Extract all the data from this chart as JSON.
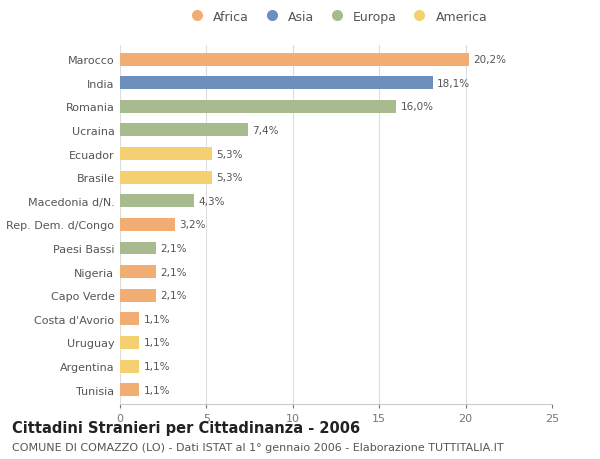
{
  "categories": [
    "Marocco",
    "India",
    "Romania",
    "Ucraina",
    "Ecuador",
    "Brasile",
    "Macedonia d/N.",
    "Rep. Dem. d/Congo",
    "Paesi Bassi",
    "Nigeria",
    "Capo Verde",
    "Costa d'Avorio",
    "Uruguay",
    "Argentina",
    "Tunisia"
  ],
  "values": [
    20.2,
    18.1,
    16.0,
    7.4,
    5.3,
    5.3,
    4.3,
    3.2,
    2.1,
    2.1,
    2.1,
    1.1,
    1.1,
    1.1,
    1.1
  ],
  "labels": [
    "20,2%",
    "18,1%",
    "16,0%",
    "7,4%",
    "5,3%",
    "5,3%",
    "4,3%",
    "3,2%",
    "2,1%",
    "2,1%",
    "2,1%",
    "1,1%",
    "1,1%",
    "1,1%",
    "1,1%"
  ],
  "colors": [
    "#F2AE72",
    "#6E8FBD",
    "#A8BB8F",
    "#A8BB8F",
    "#F5D070",
    "#F5D070",
    "#A8BB8F",
    "#F2AE72",
    "#A8BB8F",
    "#F2AE72",
    "#F2AE72",
    "#F2AE72",
    "#F5D070",
    "#F5D070",
    "#F2AE72"
  ],
  "legend_labels": [
    "Africa",
    "Asia",
    "Europa",
    "America"
  ],
  "legend_colors": [
    "#F2AE72",
    "#6E8FBD",
    "#A8BB8F",
    "#F5D070"
  ],
  "title": "Cittadini Stranieri per Cittadinanza - 2006",
  "subtitle": "COMUNE DI COMAZZO (LO) - Dati ISTAT al 1° gennaio 2006 - Elaborazione TUTTITALIA.IT",
  "xlim": [
    0,
    25
  ],
  "xticks": [
    0,
    5,
    10,
    15,
    20,
    25
  ],
  "background_color": "#ffffff",
  "grid_color": "#dddddd",
  "bar_height": 0.55,
  "title_fontsize": 10.5,
  "subtitle_fontsize": 8,
  "label_fontsize": 7.5,
  "tick_fontsize": 8,
  "legend_fontsize": 9
}
